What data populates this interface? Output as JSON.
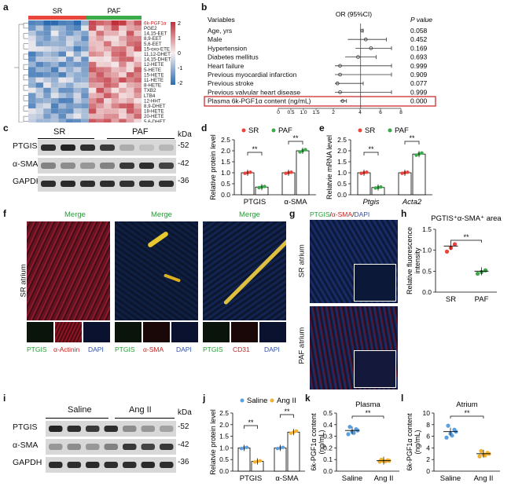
{
  "panel_labels": {
    "a": "a",
    "b": "b",
    "c": "c",
    "d": "d",
    "e": "e",
    "f": "f",
    "g": "g",
    "h": "h",
    "i": "i",
    "j": "j",
    "k": "k",
    "l": "l"
  },
  "colors": {
    "sr": "#e8453c",
    "paf": "#3aaa4a",
    "saline": "#5aa0e0",
    "angii": "#f0b030",
    "heat_hi": "#c0303a",
    "heat_lo": "#2c6bb0",
    "highlight": "#c81e1e"
  },
  "heatmap": {
    "group_sr": "SR",
    "group_paf": "PAF",
    "legend": [
      "2",
      "1",
      "0",
      "-1",
      "-2"
    ],
    "rows": [
      "6k-PGF1α",
      "PGE2",
      "14,15-EET",
      "8,9-EET",
      "5,6-EET",
      "15-oxo-ETE",
      "11,12-DHET",
      "14,15-DHET",
      "12-HETE",
      "5-HETE",
      "15-HETE",
      "11-HETE",
      "8-HETE",
      "TXB2",
      "LTB4",
      "12-HHT",
      "8,9-DHET",
      "18-HETE",
      "20-HETE",
      "5,6-DHET"
    ]
  },
  "forest": {
    "header_var": "Variables",
    "header_or": "OR (95%CI)",
    "header_p": "P value",
    "rows": [
      {
        "label": "Age, yrs",
        "p": "0.058"
      },
      {
        "label": "Male",
        "p": "0.452"
      },
      {
        "label": "Hypertension",
        "p": "0.169"
      },
      {
        "label": "Diabetes mellitus",
        "p": "0.693"
      },
      {
        "label": "Heart failure",
        "p": "0.999"
      },
      {
        "label": "Previous myocardial infarction",
        "p": "0.909"
      },
      {
        "label": "Previous stroke",
        "p": "0.077"
      },
      {
        "label": "Previous valvular heart disease",
        "p": "0.999"
      },
      {
        "label": "Plasma 6k-PGF1α content (ng/mL)",
        "p": "0.000"
      }
    ],
    "axis": [
      "0",
      "0.5",
      "1.0",
      "1.5",
      "2",
      "4",
      "6",
      "8"
    ]
  },
  "wb_c": {
    "kda": "kDa",
    "groups": [
      "SR",
      "PAF"
    ],
    "rows": [
      {
        "name": "PTGIS",
        "kda": "-52"
      },
      {
        "name": "α-SMA",
        "kda": "-42"
      },
      {
        "name": "GAPDH",
        "kda": "-36"
      }
    ]
  },
  "wb_i": {
    "kda": "kDa",
    "groups": [
      "Saline",
      "Ang II"
    ],
    "rows": [
      {
        "name": "PTGIS",
        "kda": "-52"
      },
      {
        "name": "α-SMA",
        "kda": "-42"
      },
      {
        "name": "GAPDH",
        "kda": "-36"
      }
    ]
  },
  "chart_data": [
    {
      "panel": "d",
      "type": "bar",
      "legend": [
        "SR",
        "PAF"
      ],
      "ylabel": "Relative protein level",
      "ylim": [
        0,
        2.5
      ],
      "yticks": [
        "0.0",
        "0.5",
        "1.0",
        "1.5",
        "2.0",
        "2.5"
      ],
      "categories": [
        "PTGIS",
        "α-SMA"
      ],
      "series": [
        {
          "name": "SR",
          "values": [
            1.0,
            1.0
          ]
        },
        {
          "name": "PAF",
          "values": [
            0.35,
            2.0
          ]
        }
      ],
      "sig": [
        "**",
        "**"
      ]
    },
    {
      "panel": "e",
      "type": "bar",
      "legend": [
        "SR",
        "PAF"
      ],
      "ylabel": "Relatvie mRNA level",
      "ylim": [
        0,
        2.5
      ],
      "yticks": [
        "0.0",
        "0.5",
        "1.0",
        "1.5",
        "2.0",
        "2.5"
      ],
      "categories": [
        "Ptgis",
        "Acta2"
      ],
      "series": [
        {
          "name": "SR",
          "values": [
            1.0,
            1.0
          ]
        },
        {
          "name": "PAF",
          "values": [
            0.33,
            1.85
          ]
        }
      ],
      "sig": [
        "**",
        "**"
      ]
    },
    {
      "panel": "h",
      "type": "scatter",
      "title": "PGTIS⁺α-SMA⁺ area",
      "ylabel": "Relative fluorescence intensity",
      "ylim": [
        0,
        1.5
      ],
      "yticks": [
        "0.0",
        "0.5",
        "1.0",
        "1.5"
      ],
      "categories": [
        "SR",
        "PAF"
      ],
      "values": [
        1.1,
        0.5
      ],
      "sig": "**"
    },
    {
      "panel": "j",
      "type": "bar",
      "legend": [
        "Saline",
        "Ang II"
      ],
      "ylabel": "Relatvie protein level",
      "ylim": [
        0,
        2.5
      ],
      "yticks": [
        "0.0",
        "0.5",
        "1.0",
        "1.5",
        "2.0",
        "2.5"
      ],
      "categories": [
        "PTGIS",
        "α-SMA"
      ],
      "series": [
        {
          "name": "Saline",
          "values": [
            1.0,
            1.0
          ]
        },
        {
          "name": "Ang II",
          "values": [
            0.42,
            1.68
          ]
        }
      ],
      "sig": [
        "**",
        "**"
      ]
    },
    {
      "panel": "k",
      "type": "scatter",
      "title": "Plasma",
      "ylabel": "6k-PGF1α content (ng/mL)",
      "ylim": [
        0,
        0.5
      ],
      "yticks": [
        "0.0",
        "0.1",
        "0.2",
        "0.3",
        "0.4",
        "0.5"
      ],
      "categories": [
        "Saline",
        "Ang II"
      ],
      "values": [
        0.35,
        0.09
      ],
      "sig": "**"
    },
    {
      "panel": "l",
      "type": "scatter",
      "title": "Atrium",
      "ylabel": "6k-PGF1α content (ng/mL)",
      "ylim": [
        0,
        10
      ],
      "yticks": [
        "0",
        "2",
        "4",
        "6",
        "8",
        "10"
      ],
      "categories": [
        "Saline",
        "Ang II"
      ],
      "values": [
        6.8,
        3.0
      ],
      "sig": "**"
    }
  ],
  "micro_f": {
    "merge_labels": [
      "Merge",
      "Merge",
      "Merge"
    ],
    "row_label": "SR atrium",
    "sub_labels": [
      [
        "PTGIS",
        "α-Actinin",
        "DAPI"
      ],
      [
        "PTGIS",
        "α-SMA",
        "DAPI"
      ],
      [
        "PTGIS",
        "CD31",
        "DAPI"
      ]
    ]
  },
  "micro_g": {
    "title_ptgis": "PTGIS",
    "title_sma": "α-SMA",
    "title_dapi": "DAPI",
    "sr": "SR atrium",
    "paf": "PAF atrium"
  }
}
